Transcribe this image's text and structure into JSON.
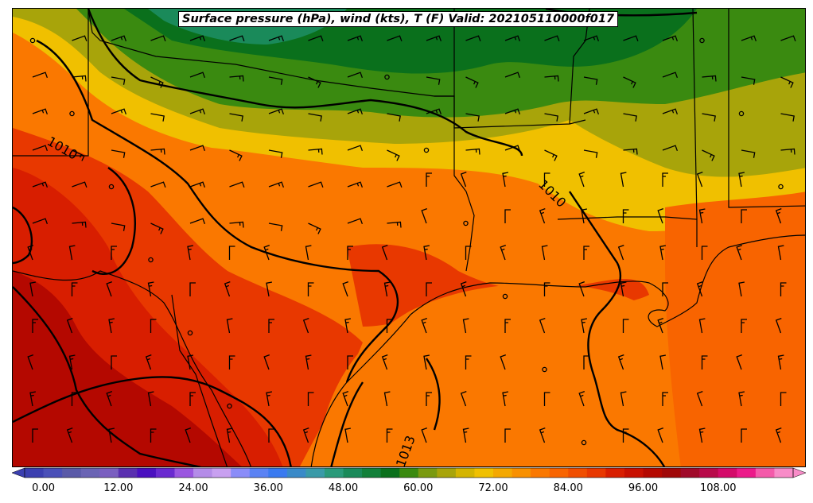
{
  "title": "Surface pressure (hPa), wind (kts), T (F) Valid: 202105110000f017",
  "colorbar": {
    "min": -3,
    "max": 120,
    "step": 3,
    "tick_labels": [
      "0.00",
      "12.00",
      "24.00",
      "36.00",
      "48.00",
      "60.00",
      "72.00",
      "84.00",
      "96.00",
      "108.00"
    ],
    "colors": [
      "#3b3fb0",
      "#4a50b8",
      "#5a5aa8",
      "#6a64b4",
      "#7a5fc0",
      "#5a30b0",
      "#4a10c0",
      "#6a2ad0",
      "#9a56e0",
      "#b48ce8",
      "#c8a0f0",
      "#8a8cf8",
      "#5a82f4",
      "#3a7af0",
      "#3a8ac8",
      "#3a9aa8",
      "#2a9a7a",
      "#1a8a5a",
      "#12803a",
      "#0a701c",
      "#3a8a10",
      "#7a9a10",
      "#a8a40a",
      "#d4b400",
      "#f0c000",
      "#f4a800",
      "#f89000",
      "#fa7800",
      "#f86400",
      "#f04e00",
      "#e83800",
      "#d81e00",
      "#c81000",
      "#b40800",
      "#a00808",
      "#a00a2a",
      "#b80a4a",
      "#d40a6a",
      "#ec1a8a",
      "#f45aaa",
      "#f88cc8"
    ]
  },
  "isobar_labels": [
    "1010",
    "1010",
    "1013"
  ],
  "map_features": [
    "temperature-fill",
    "isobars",
    "wind-barbs",
    "state-borders",
    "coastline"
  ]
}
